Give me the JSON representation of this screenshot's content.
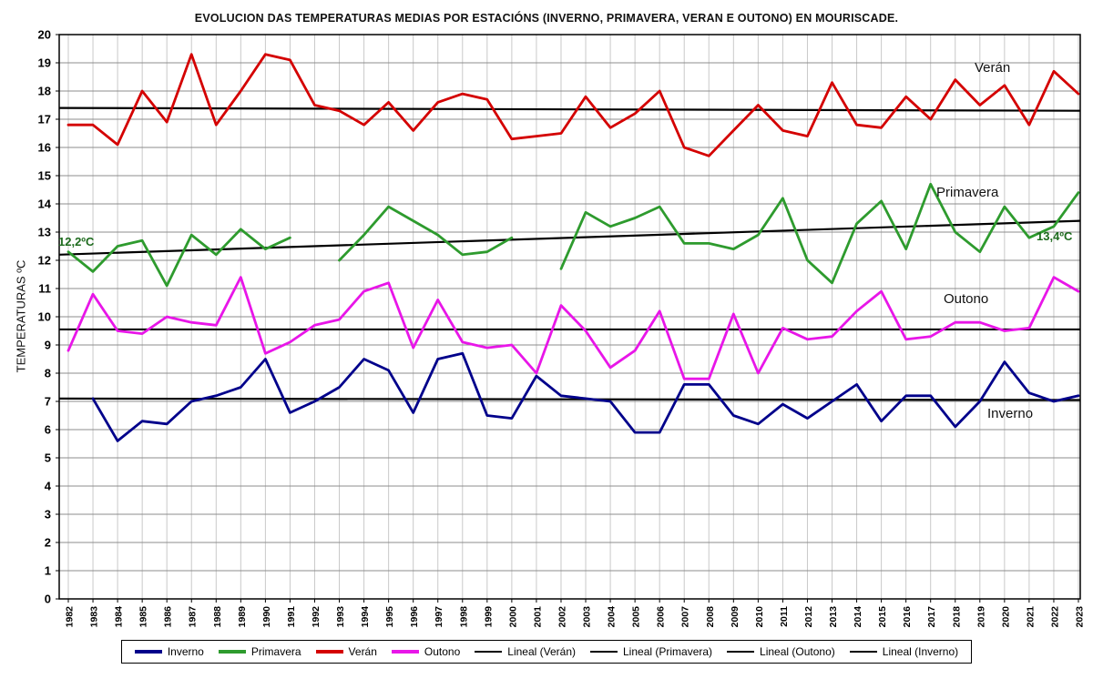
{
  "title": "EVOLUCION DAS TEMPERATURAS MEDIAS POR ESTACIÓNS (INVERNO, PRIMAVERA, VERAN E OUTONO) EN MOURISCADE.",
  "y_axis_label": "TEMPERATURAS ºC",
  "series_labels": {
    "veran": "Verán",
    "primavera": "Primavera",
    "outono": "Outono",
    "inverno": "Inverno"
  },
  "annotations": {
    "trend_start": "12,2ºC",
    "trend_end": "13,4ºC"
  },
  "chart_data": {
    "type": "line",
    "x": [
      1982,
      1983,
      1984,
      1985,
      1986,
      1987,
      1988,
      1989,
      1990,
      1991,
      1992,
      1993,
      1994,
      1995,
      1996,
      1997,
      1998,
      1999,
      2000,
      2001,
      2002,
      2003,
      2004,
      2005,
      2006,
      2007,
      2008,
      2009,
      2010,
      2011,
      2012,
      2013,
      2014,
      2015,
      2016,
      2017,
      2018,
      2019,
      2020,
      2021,
      2022,
      2023
    ],
    "ylim": [
      0,
      20
    ],
    "ytick_step": 1,
    "grid": true,
    "series": [
      {
        "name": "Inverno",
        "color": "#00008B",
        "values": [
          null,
          7.1,
          5.6,
          6.3,
          6.2,
          7.0,
          7.2,
          7.5,
          8.5,
          6.6,
          7.0,
          7.5,
          8.5,
          8.1,
          6.6,
          8.5,
          8.7,
          6.5,
          6.4,
          7.9,
          7.2,
          7.1,
          7.0,
          5.9,
          5.9,
          7.6,
          7.6,
          6.5,
          6.2,
          6.9,
          6.4,
          7.0,
          7.6,
          6.3,
          7.2,
          7.2,
          6.1,
          7.0,
          8.4,
          7.3,
          7.0,
          7.2
        ]
      },
      {
        "name": "Primavera",
        "color": "#2E9B2E",
        "values": [
          12.3,
          11.6,
          12.5,
          12.7,
          11.1,
          12.9,
          12.2,
          13.1,
          12.4,
          12.8,
          null,
          12.0,
          12.9,
          13.9,
          13.4,
          12.9,
          12.2,
          12.3,
          12.8,
          null,
          11.7,
          13.7,
          13.2,
          13.5,
          13.9,
          12.6,
          12.6,
          12.4,
          12.9,
          14.2,
          12.0,
          11.2,
          13.3,
          14.1,
          12.4,
          14.7,
          13.0,
          12.3,
          13.9,
          12.8,
          13.2,
          14.4
        ]
      },
      {
        "name": "Verán",
        "color": "#D40000",
        "values": [
          16.8,
          16.8,
          16.1,
          18.0,
          16.9,
          19.3,
          16.8,
          18.0,
          19.3,
          19.1,
          17.5,
          17.3,
          16.8,
          17.6,
          16.6,
          17.6,
          17.9,
          17.7,
          16.3,
          16.4,
          16.5,
          17.8,
          16.7,
          17.2,
          18.0,
          16.0,
          15.7,
          16.6,
          17.5,
          16.6,
          16.4,
          18.3,
          16.8,
          16.7,
          17.8,
          17.0,
          18.4,
          17.5,
          18.2,
          16.8,
          18.7,
          17.9
        ]
      },
      {
        "name": "Outono",
        "color": "#E816E8",
        "values": [
          8.8,
          10.8,
          9.5,
          9.4,
          10.0,
          9.8,
          9.7,
          11.4,
          8.7,
          9.1,
          9.7,
          9.9,
          10.9,
          11.2,
          8.9,
          10.6,
          9.1,
          8.9,
          9.0,
          8.0,
          10.4,
          9.5,
          8.2,
          8.8,
          10.2,
          7.8,
          7.8,
          10.1,
          8.0,
          9.6,
          9.2,
          9.3,
          10.2,
          10.9,
          9.2,
          9.3,
          9.8,
          9.8,
          9.5,
          9.6,
          11.4,
          10.9
        ]
      }
    ],
    "trendlines": [
      {
        "name": "Lineal (Verán)",
        "start": 17.4,
        "end": 17.3
      },
      {
        "name": "Lineal (Primavera)",
        "start": 12.2,
        "end": 13.4
      },
      {
        "name": "Lineal (Outono)",
        "start": 9.55,
        "end": 9.55
      },
      {
        "name": "Lineal (Inverno)",
        "start": 7.1,
        "end": 7.05
      }
    ]
  },
  "legend": {
    "items": [
      {
        "label": "Inverno",
        "color": "#00008B",
        "thick": true
      },
      {
        "label": "Primavera",
        "color": "#2E9B2E",
        "thick": true
      },
      {
        "label": "Verán",
        "color": "#D40000",
        "thick": true
      },
      {
        "label": "Outono",
        "color": "#E816E8",
        "thick": true
      },
      {
        "label": "Lineal (Verán)",
        "color": "#000000",
        "thick": false
      },
      {
        "label": "Lineal (Primavera)",
        "color": "#000000",
        "thick": false
      },
      {
        "label": "Lineal (Outono)",
        "color": "#000000",
        "thick": false
      },
      {
        "label": "Lineal (Inverno)",
        "color": "#000000",
        "thick": false
      }
    ]
  }
}
